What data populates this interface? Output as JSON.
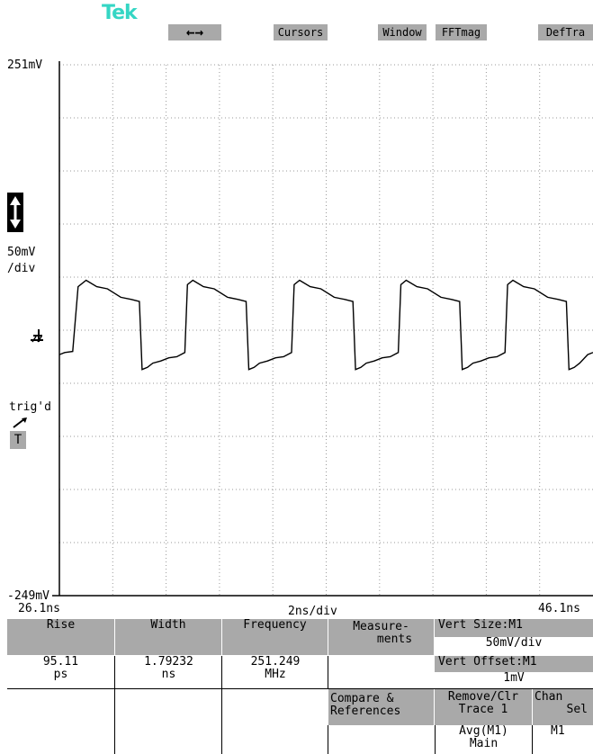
{
  "logo": "Tek",
  "top_menu": {
    "arrow_button": "←→",
    "cursors": "Cursors",
    "window": "Window",
    "fftmag": "FFTmag",
    "deftra": "DefTra"
  },
  "left_readouts": {
    "top_voltage": "251mV",
    "volts_per_div_1": "50mV",
    "volts_per_div_2": "/div",
    "trig_status": "trig'd",
    "trig_button": "T",
    "bottom_voltage": "-249mV"
  },
  "time_axis": {
    "start": "26.1ns",
    "scale": "2ns/div",
    "end": "46.1ns"
  },
  "measurements": {
    "headers": [
      "Rise",
      "Width",
      "Frequency"
    ],
    "values": [
      [
        "95.11",
        "ps"
      ],
      [
        "1.79232",
        "ns"
      ],
      [
        "251.249",
        "MHz"
      ]
    ]
  },
  "menu": {
    "measurements_1": "Measure-",
    "measurements_2": "ments",
    "compare_1": "Compare &",
    "compare_2": "References",
    "vert_size_label": "Vert Size:M1",
    "vert_size_value": "50mV/div",
    "vert_offset_label": "Vert Offset:M1",
    "vert_offset_value": "1mV",
    "remove_clr_1": "Remove/Clr",
    "remove_clr_2": "Trace 1",
    "remove_clr_3": "Avg(M1)",
    "remove_clr_4": "Main",
    "chan_sel_1": "Chan",
    "chan_sel_2": "Sel",
    "chan_sel_3": "M1"
  },
  "chart_data": {
    "type": "line",
    "title": "",
    "xlabel": "",
    "ylabel": "",
    "xlim_ns": [
      26.1,
      46.1
    ],
    "ylim_mV": [
      -249,
      251
    ],
    "x_div": 10,
    "y_div": 10,
    "grid": true,
    "series": [
      {
        "name": "",
        "x_ns": [
          26.1,
          26.3,
          26.6,
          26.8,
          27.1,
          27.5,
          27.9,
          28.4,
          28.8,
          29.1,
          29.2,
          29.4,
          29.6,
          29.9,
          30.2,
          30.5,
          30.8,
          30.9,
          31.1,
          31.5,
          31.9,
          32.4,
          32.8,
          33.1,
          33.2,
          33.4,
          33.6,
          33.9,
          34.2,
          34.5,
          34.8,
          34.9,
          35.1,
          35.5,
          35.9,
          36.4,
          36.8,
          37.1,
          37.2,
          37.4,
          37.6,
          37.9,
          38.2,
          38.5,
          38.8,
          38.9,
          39.1,
          39.5,
          39.9,
          40.4,
          40.8,
          41.1,
          41.2,
          41.4,
          41.6,
          41.9,
          42.2,
          42.5,
          42.8,
          42.9,
          43.1,
          43.5,
          43.9,
          44.4,
          44.8,
          45.1,
          45.2,
          45.4,
          45.6,
          45.9,
          46.1
        ],
        "y_mV": [
          -22,
          -20,
          -19,
          42,
          48,
          42,
          40,
          32,
          30,
          28,
          -36,
          -34,
          -30,
          -28,
          -25,
          -24,
          -20,
          44,
          48,
          42,
          40,
          32,
          30,
          28,
          -36,
          -34,
          -30,
          -28,
          -25,
          -24,
          -20,
          44,
          48,
          42,
          40,
          32,
          30,
          28,
          -36,
          -34,
          -30,
          -28,
          -25,
          -24,
          -20,
          44,
          48,
          42,
          40,
          32,
          30,
          28,
          -36,
          -34,
          -30,
          -28,
          -25,
          -24,
          -20,
          44,
          48,
          42,
          40,
          32,
          30,
          28,
          -36,
          -34,
          -30,
          -22,
          -20
        ]
      }
    ]
  },
  "colors": {
    "logo": "#35d6c4",
    "button_gray": "#a9a9a9",
    "grid": "#9a9a9a",
    "trace": "#000000"
  }
}
